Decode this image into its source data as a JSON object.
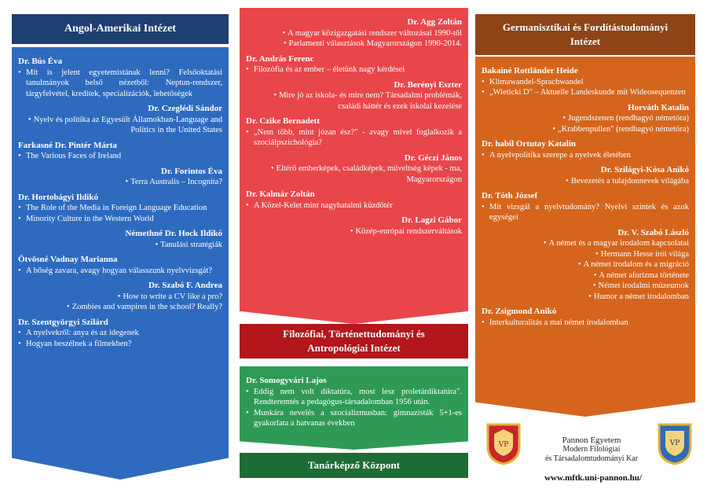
{
  "left": {
    "title": "Angol-Amerikai Intézet",
    "entries": [
      {
        "name": "Dr. Bús Éva",
        "align": "left",
        "items": [
          "Mit is jelent egyetemistának lenni? Felsőoktatási tanulmányok belső nézetből: Neptun-rendszer, tárgyfelvétel, kreditek, specializációk, lehetőségek"
        ]
      },
      {
        "name": "Dr. Czeglédi Sándor",
        "align": "right",
        "items": [
          "Nyelv és politika az Egyesült Államokban-Language and Politics in the United States"
        ]
      },
      {
        "name": "Farkasné Dr. Pintér Márta",
        "align": "left",
        "items": [
          "The Various Faces of Ireland"
        ]
      },
      {
        "name": "Dr. Forintos Éva",
        "align": "right",
        "items": [
          "Terra Australis – Incognita?"
        ]
      },
      {
        "name": "Dr. Hortobágyi Ildikó",
        "align": "left",
        "items": [
          "The Role of the Media in Foreign Language Education",
          "Minority Culture in the Western World"
        ]
      },
      {
        "name": "Némethné Dr. Hock Ildikó",
        "align": "right",
        "items": [
          "Tanulási stratégiák"
        ]
      },
      {
        "name": "Ötvösné Vadnay Marianna",
        "align": "left",
        "items": [
          "A bőség zavara, avagy hogyan válasszunk nyelvvizsgát?"
        ]
      },
      {
        "name": "Dr. Szabó F. Andrea",
        "align": "right",
        "items": [
          "How to write a CV like a pro?",
          "Zombies and vampires in the school? Really?"
        ]
      },
      {
        "name": "Dr. Szentgyörgyi Szilárd",
        "align": "left",
        "items": [
          "A nyelvekről: anya és az idegenek",
          "Hogyan beszélnek a filmekben?"
        ]
      }
    ]
  },
  "middle": {
    "entries": [
      {
        "name": "Dr. Agg Zoltán",
        "align": "right",
        "items": [
          "A magyar közigazgatási rendszer változásai 1990-től",
          "Parlamenti választások Magyarországon 1990-2014."
        ]
      },
      {
        "name": "Dr. András Ferenc",
        "align": "left",
        "items": [
          "Filozófia és az ember – életünk nagy kérdései"
        ]
      },
      {
        "name": "Dr. Berényi Eszter",
        "align": "right",
        "items": [
          "Mire jó az iskola- és mire nem? Társadalmi problémák, családi háttér és ezek iskolai kezelése"
        ]
      },
      {
        "name": "Dr. Czike Bernadett",
        "align": "left",
        "items": [
          "„Nem több, mint józan ész?\" - avagy mivel foglalkozik a szociálpszichológia?"
        ]
      },
      {
        "name": "Dr. Géczi János",
        "align": "right",
        "items": [
          "Eltérő emberképek, családképek, műveltség képek - ma, Magyarországon"
        ]
      },
      {
        "name": "Dr. Kalmár Zoltán",
        "align": "left",
        "items": [
          "A Közel-Kelet mint nagyhatalmi küzdőtér"
        ]
      },
      {
        "name": "Dr. Lagzi Gábor",
        "align": "right",
        "items": [
          "Közép-európai rendszerváltások"
        ]
      }
    ],
    "institute_title_1": "Filozófiai, Történettudományi és",
    "institute_title_2": "Antropológiai Intézet"
  },
  "green": {
    "entries": [
      {
        "name": "Dr. Somogyvári Lajos",
        "align": "left",
        "items": [
          "Eddig nem volt diktatúra, most lesz proletárdiktatúra\". Rendteremtés a pedagógus-társadalomban 1956 után.",
          "Munkára nevelés a szocializmusban: gimnazisták 5+1-es gyakorlata a hatvanas években"
        ]
      }
    ],
    "title": "Tanárképző Központ"
  },
  "right": {
    "title_1": "Germanisztikai és Fordítástudományi",
    "title_2": "Intézet",
    "entries": [
      {
        "name": "Bakainé Rottländer Heide",
        "align": "left",
        "items": [
          "Klimawandel-Sprachwandel",
          "„Wieticki D\" – Aktuelle Landeskunde mit Wideosequenzen"
        ]
      },
      {
        "name": "Horváth Katalin",
        "align": "right",
        "items": [
          "Jugendszenen (rendhagyó németóra)",
          "„Krabbenpullen\" (rendhagyó németóra)"
        ]
      },
      {
        "name": "Dr. habil Ortutay Katalin",
        "align": "left",
        "items": [
          "A nyelvpolitika szerepe a nyelvek életében"
        ]
      },
      {
        "name": "Dr. Szilágyi-Kósa Anikó",
        "align": "right",
        "items": [
          "Bevezetés a tulajdonnevek világába"
        ]
      },
      {
        "name": "Dr. Tóth József",
        "align": "left",
        "items": [
          "Mit vizsgál a nyelvtudomány? Nyelvi szintek és azok egységei"
        ]
      },
      {
        "name": "Dr. V. Szabó László",
        "align": "right",
        "items": [
          "A német és a magyar irodalom kapcsolatai",
          "Hermann Hesse írói világa",
          "A német irodalom és a migráció",
          "A német aforizma története",
          "Német irodalmi múzeumok",
          "Humor a német irodalomban"
        ]
      },
      {
        "name": "Dr. Zsigmond Anikó",
        "align": "left",
        "items": [
          "Interkulturalitás a mai német irodalomban"
        ]
      }
    ]
  },
  "footer": {
    "university": "Pannon Egyetem",
    "faculty_1": "Modern Filológiai",
    "faculty_2": "és Társadalomtudományi Kar",
    "url": "www.mftk.uni-pannon.hu/",
    "seal1_text": "VP",
    "seal2_text": "VP"
  },
  "colors": {
    "blue_dark": "#1f3f73",
    "blue": "#2e6bbf",
    "red": "#e8464a",
    "red_dark": "#b3161b",
    "green": "#2f9a55",
    "green_dark": "#1d6b35",
    "orange": "#d5651d",
    "orange_dark": "#8e4417"
  }
}
